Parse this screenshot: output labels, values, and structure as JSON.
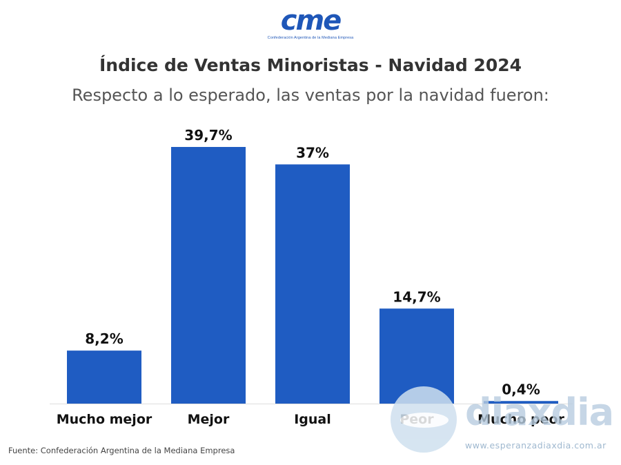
{
  "logo": {
    "brand": "cme",
    "tagline": "Confederación Argentina de la Mediana Empresa"
  },
  "header": {
    "title": "Índice de Ventas Minoristas - Navidad 2024",
    "subtitle": "Respecto a lo esperado, las ventas por la navidad fueron:"
  },
  "chart_data": {
    "type": "bar",
    "title": "Índice de Ventas Minoristas - Navidad 2024",
    "subtitle": "Respecto a lo esperado, las ventas por la navidad fueron:",
    "categories": [
      "Mucho mejor",
      "Mejor",
      "Igual",
      "Peor",
      "Mucho peor"
    ],
    "values": [
      8.2,
      39.7,
      37,
      14.7,
      0.4
    ],
    "value_labels": [
      "8,2%",
      "39,7%",
      "37%",
      "14,7%",
      "0,4%"
    ],
    "bar_color": "#1f5cc2",
    "ylim": [
      0,
      39.7
    ],
    "grid": false,
    "legend": "none"
  },
  "footer": {
    "source": "Fuente: Confederación Argentina de la Mediana Empresa"
  },
  "watermark": {
    "brand": "diaxdia",
    "url": "www.esperanzadiaxdia.com.ar"
  }
}
